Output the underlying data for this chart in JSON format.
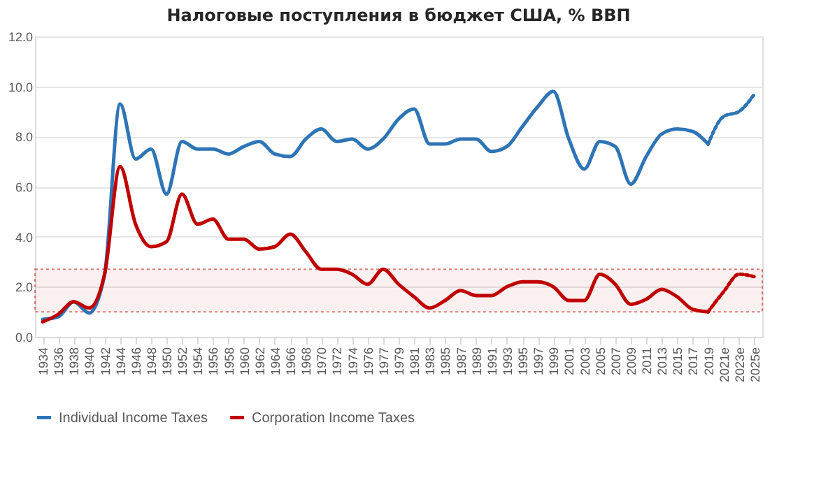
{
  "chart_data": {
    "type": "line",
    "title": "Налоговые поступления в бюджет США, % ВВП",
    "categories": [
      "1934",
      "1936",
      "1938",
      "1940",
      "1942",
      "1944",
      "1946",
      "1948",
      "1950",
      "1952",
      "1954",
      "1956",
      "1958",
      "1960",
      "1962",
      "1964",
      "1966",
      "1968",
      "1970",
      "1972",
      "1974",
      "1976",
      "1977",
      "1979",
      "1981",
      "1983",
      "1985",
      "1987",
      "1989",
      "1991",
      "1993",
      "1995",
      "1997",
      "1999",
      "2001",
      "2003",
      "2005",
      "2007",
      "2009",
      "2011",
      "2013",
      "2015",
      "2017",
      "2019",
      "2021e",
      "2023e",
      "2025e"
    ],
    "series": [
      {
        "name": "Individual Income Taxes",
        "color": "#2e75b6",
        "line_style": "solid",
        "values": [
          0.7,
          0.8,
          1.4,
          0.95,
          2.5,
          9.3,
          7.1,
          7.5,
          5.7,
          7.8,
          7.5,
          7.5,
          7.3,
          7.6,
          7.8,
          7.3,
          7.2,
          7.9,
          8.3,
          7.8,
          7.9,
          7.5,
          7.9,
          8.7,
          9.1,
          7.7,
          7.7,
          7.9,
          7.9,
          7.4,
          7.6,
          8.4,
          9.2,
          9.8,
          7.9,
          6.7,
          7.8,
          7.6,
          6.1,
          7.2,
          8.1,
          8.3,
          8.2,
          7.7,
          null,
          null,
          null
        ]
      },
      {
        "name": "Corporation Income Taxes",
        "color": "#c00000",
        "line_style": "solid",
        "values": [
          0.6,
          0.9,
          1.4,
          1.15,
          2.5,
          6.8,
          4.5,
          3.6,
          3.8,
          5.7,
          4.5,
          4.7,
          3.9,
          3.9,
          3.5,
          3.6,
          4.1,
          3.4,
          2.7,
          2.7,
          2.5,
          2.1,
          2.7,
          2.1,
          1.6,
          1.15,
          1.45,
          1.85,
          1.65,
          1.65,
          2.0,
          2.2,
          2.2,
          2.0,
          1.45,
          1.45,
          2.5,
          2.1,
          1.3,
          1.5,
          1.9,
          1.6,
          1.1,
          1.0,
          null,
          null,
          null
        ]
      },
      {
        "color": "#2e75b6",
        "line_style": "dotted",
        "values": [
          null,
          null,
          null,
          null,
          null,
          null,
          null,
          null,
          null,
          null,
          null,
          null,
          null,
          null,
          null,
          null,
          null,
          null,
          null,
          null,
          null,
          null,
          null,
          null,
          null,
          null,
          null,
          null,
          null,
          null,
          null,
          null,
          null,
          null,
          null,
          null,
          null,
          null,
          null,
          null,
          null,
          null,
          null,
          7.7,
          8.8,
          9.0,
          9.7
        ]
      },
      {
        "color": "#c00000",
        "line_style": "dotted",
        "values": [
          null,
          null,
          null,
          null,
          null,
          null,
          null,
          null,
          null,
          null,
          null,
          null,
          null,
          null,
          null,
          null,
          null,
          null,
          null,
          null,
          null,
          null,
          null,
          null,
          null,
          null,
          null,
          null,
          null,
          null,
          null,
          null,
          null,
          null,
          null,
          null,
          null,
          null,
          null,
          null,
          null,
          null,
          null,
          1.0,
          1.8,
          2.5,
          2.4
        ]
      }
    ],
    "ylim": [
      0,
      12
    ],
    "yticks": [
      {
        "value": 0,
        "label": "0.0"
      },
      {
        "value": 2,
        "label": "2.0"
      },
      {
        "value": 4,
        "label": "4.0"
      },
      {
        "value": 6,
        "label": "6.0"
      },
      {
        "value": 8,
        "label": "8.0"
      },
      {
        "value": 10,
        "label": "10.0"
      },
      {
        "value": 12,
        "label": "12.0"
      }
    ],
    "bands": [
      {
        "axis": "y",
        "from": 1.0,
        "to": 2.7,
        "color": "#c00000"
      }
    ],
    "grid": "y",
    "legend": "bottom"
  }
}
